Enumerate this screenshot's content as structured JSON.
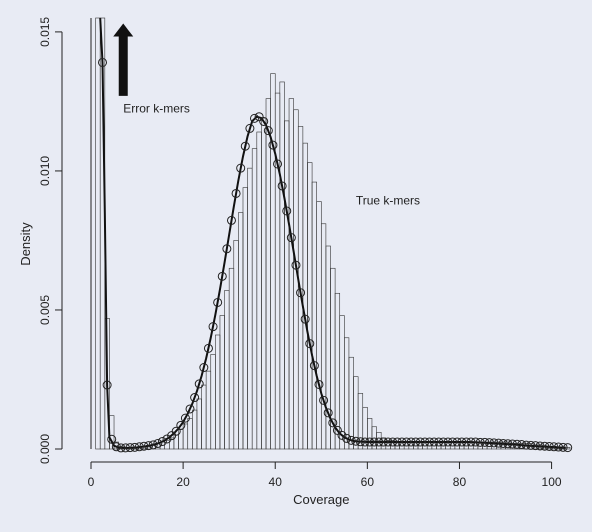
{
  "chart_data": {
    "type": "bar",
    "title": "",
    "xlabel": "Coverage",
    "ylabel": "Density",
    "xlim": [
      0,
      104
    ],
    "ylim": [
      0,
      0.0155
    ],
    "x_ticks": [
      0,
      20,
      40,
      60,
      80,
      100
    ],
    "x_tick_labels": [
      "0",
      "20",
      "40",
      "60",
      "80",
      "100"
    ],
    "y_ticks": [
      0,
      0.005,
      0.01,
      0.015
    ],
    "y_tick_labels": [
      "0.000",
      "0.005",
      "0.010",
      "0.015"
    ],
    "grid": false,
    "annotations": [
      {
        "text": "Error k-mers",
        "x": 7,
        "y": 0.0121
      },
      {
        "text": "True k-mers",
        "x": 57.5,
        "y": 0.0088
      }
    ],
    "arrow": {
      "x": 7,
      "y_from": 0.0127,
      "y_to": 0.0153
    },
    "histogram": {
      "bin_width": 1,
      "x_start": 1,
      "values": [
        0.0155,
        0.0155,
        0.0047,
        0.0012,
        0.00025,
        0.0001,
        5e-05,
        5e-05,
        6e-05,
        8e-05,
        0.0001,
        0.00013,
        0.00016,
        0.0002,
        0.00025,
        0.0003,
        0.0004,
        0.0005,
        0.0007,
        0.0009,
        0.0011,
        0.0014,
        0.0018,
        0.0023,
        0.0028,
        0.0034,
        0.0041,
        0.0048,
        0.0057,
        0.0065,
        0.0075,
        0.0085,
        0.0094,
        0.0101,
        0.0108,
        0.0114,
        0.0119,
        0.0126,
        0.0135,
        0.0128,
        0.0132,
        0.0118,
        0.0126,
        0.0122,
        0.0116,
        0.011,
        0.0103,
        0.0096,
        0.0089,
        0.0081,
        0.0073,
        0.0065,
        0.0056,
        0.0048,
        0.004,
        0.0033,
        0.0026,
        0.002,
        0.0015,
        0.0011,
        0.0008,
        0.0006,
        0.0004,
        0.0003,
        0.0003,
        0.00025,
        0.00025,
        0.00025,
        0.00025,
        0.00025,
        0.00025,
        0.00025,
        0.00025,
        0.00025,
        0.00025,
        0.00025,
        0.00025,
        0.00025,
        0.00025,
        0.00025,
        0.00025,
        0.00025,
        0.00025,
        0.00025,
        0.00025,
        0.00025,
        0.00025,
        0.00025,
        0.00025,
        0.00025,
        0.0002,
        0.0002,
        0.0002,
        0.0002,
        0.0002,
        0.00015,
        0.00015,
        0.00012,
        0.0001,
        0.0001,
        8e-05,
        8e-05,
        6e-05
      ]
    },
    "series": [
      {
        "type": "line",
        "x": [
          2,
          2.5,
          3,
          3.5,
          4,
          5,
          6,
          7,
          8,
          9,
          10,
          11,
          12,
          13,
          14,
          15,
          16,
          17,
          18,
          19,
          20,
          21,
          22,
          23,
          24,
          25,
          26,
          27,
          28,
          29,
          30,
          31,
          32,
          33,
          34,
          35,
          36,
          37,
          38,
          39,
          40,
          41,
          42,
          43,
          44,
          45,
          46,
          47,
          48,
          49,
          50,
          51,
          52,
          53,
          54,
          55,
          56,
          57,
          58,
          59,
          60,
          61,
          62,
          63,
          64,
          65,
          66,
          67,
          68,
          70,
          72,
          74,
          76,
          78,
          80,
          82,
          84,
          86,
          88,
          90,
          92,
          94,
          96,
          98,
          100,
          102,
          103
        ],
        "y": [
          0.0155,
          0.0139,
          0.0085,
          0.0023,
          0.00042,
          0.00012,
          5e-05,
          4e-05,
          4e-05,
          5e-05,
          6e-05,
          8e-05,
          0.0001,
          0.00013,
          0.00017,
          0.00023,
          0.00031,
          0.00042,
          0.00056,
          0.00074,
          0.00097,
          0.00127,
          0.00163,
          0.00208,
          0.00262,
          0.00326,
          0.004,
          0.00483,
          0.00574,
          0.00671,
          0.00771,
          0.00871,
          0.00966,
          0.01052,
          0.01125,
          0.01179,
          0.01195,
          0.0119,
          0.01165,
          0.01122,
          0.01062,
          0.00988,
          0.00902,
          0.00808,
          0.0071,
          0.0061,
          0.00513,
          0.00421,
          0.00337,
          0.00263,
          0.002,
          0.00149,
          0.00109,
          0.00078,
          0.00056,
          0.00042,
          0.00034,
          0.00029,
          0.00027,
          0.00026,
          0.00025,
          0.00025,
          0.00025,
          0.00025,
          0.00025,
          0.00025,
          0.00025,
          0.00025,
          0.00025,
          0.00025,
          0.00025,
          0.00025,
          0.00025,
          0.00025,
          0.00025,
          0.00025,
          0.00024,
          0.00022,
          0.0002,
          0.00018,
          0.00016,
          0.00013,
          0.00011,
          9e-05,
          7e-05,
          5e-05,
          4e-05
        ]
      },
      {
        "type": "scatter",
        "marker": "open-circle",
        "x": [
          2.5,
          3.5,
          4.5,
          5.5,
          6.5,
          7.5,
          8.5,
          9.5,
          10.5,
          11.5,
          12.5,
          13.5,
          14.5,
          15.5,
          16.5,
          17.5,
          18.5,
          19.5,
          20.5,
          21.5,
          22.5,
          23.5,
          24.5,
          25.5,
          26.5,
          27.5,
          28.5,
          29.5,
          30.5,
          31.5,
          32.5,
          33.5,
          34.5,
          35.5,
          36.5,
          37.5,
          38.5,
          39.5,
          40.5,
          41.5,
          42.5,
          43.5,
          44.5,
          45.5,
          46.5,
          47.5,
          48.5,
          49.5,
          50.5,
          51.5,
          52.5,
          53.5,
          54.5,
          55.5,
          56.5,
          57.5,
          58.5,
          59.5,
          60.5,
          61.5,
          62.5,
          63.5,
          64.5,
          65.5,
          66.5,
          67.5,
          68.5,
          69.5,
          70.5,
          71.5,
          72.5,
          73.5,
          74.5,
          75.5,
          76.5,
          77.5,
          78.5,
          79.5,
          80.5,
          81.5,
          82.5,
          83.5,
          84.5,
          85.5,
          86.5,
          87.5,
          88.5,
          89.5,
          90.5,
          91.5,
          92.5,
          93.5,
          94.5,
          95.5,
          96.5,
          97.5,
          98.5,
          99.5,
          100.5,
          101.5,
          102.5,
          103.5
        ],
        "y": [
          0.0139,
          0.0023,
          0.00035,
          8e-05,
          4e-05,
          4e-05,
          5e-05,
          6e-05,
          8e-05,
          0.0001,
          0.00012,
          0.00015,
          0.0002,
          0.00027,
          0.00036,
          0.00048,
          0.00064,
          0.00085,
          0.00111,
          0.00144,
          0.00185,
          0.00234,
          0.00293,
          0.00362,
          0.0044,
          0.00527,
          0.00621,
          0.0072,
          0.00822,
          0.00919,
          0.0101,
          0.01089,
          0.01153,
          0.01189,
          0.01195,
          0.01178,
          0.01145,
          0.01093,
          0.01025,
          0.00946,
          0.00856,
          0.0076,
          0.00661,
          0.00562,
          0.00467,
          0.00379,
          0.003,
          0.00232,
          0.00175,
          0.0013,
          0.00094,
          0.00067,
          0.00049,
          0.00038,
          0.00031,
          0.00028,
          0.00026,
          0.00025,
          0.00025,
          0.00025,
          0.00025,
          0.00025,
          0.00025,
          0.00025,
          0.00025,
          0.00025,
          0.00025,
          0.00025,
          0.00025,
          0.00025,
          0.00025,
          0.00025,
          0.00025,
          0.00025,
          0.00025,
          0.00025,
          0.00025,
          0.00025,
          0.00025,
          0.00025,
          0.00025,
          0.00025,
          0.00024,
          0.00024,
          0.00023,
          0.00022,
          0.00021,
          0.0002,
          0.00019,
          0.00018,
          0.00017,
          0.00016,
          0.00014,
          0.00013,
          0.00012,
          0.00011,
          0.0001,
          9e-05,
          8e-05,
          7e-05,
          6e-05,
          5e-05
        ]
      }
    ]
  }
}
